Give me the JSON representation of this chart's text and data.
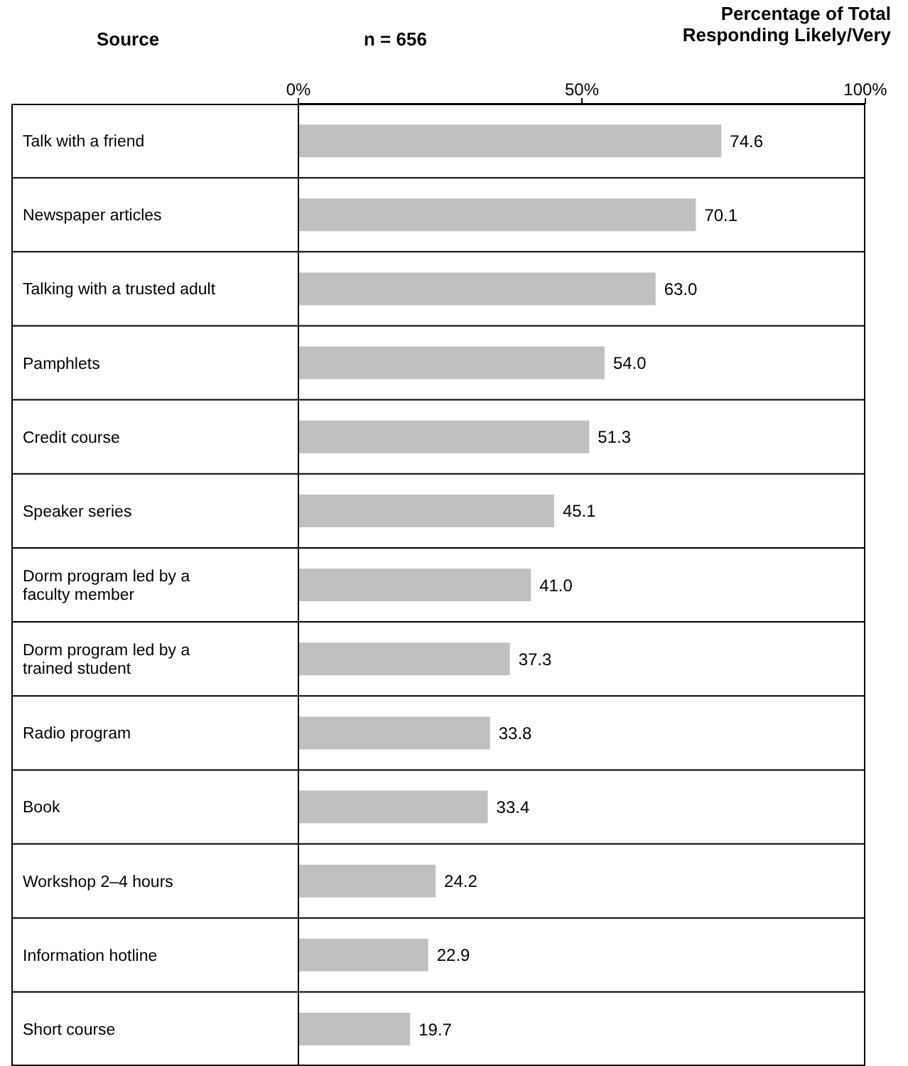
{
  "chart_data": {
    "type": "bar",
    "orientation": "horizontal",
    "ylabel": "Source",
    "xlabel": "Percentage of Total Responding Likely/Very",
    "annotations": [
      "n = 656"
    ],
    "categories": [
      "Talk with a friend",
      "Newspaper articles",
      "Talking with a trusted adult",
      "Pamphlets",
      "Credit course",
      "Speaker series",
      "Dorm program led by a faculty member",
      "Dorm program led by a trained student",
      "Radio program",
      "Book",
      "Workshop 2–4 hours",
      "Information hotline",
      "Short course"
    ],
    "values": [
      74.6,
      70.1,
      63.0,
      54.0,
      51.3,
      45.1,
      41.0,
      37.3,
      33.8,
      33.4,
      24.2,
      22.9,
      19.7
    ],
    "value_labels": [
      "74.6",
      "70.1",
      "63.0",
      "54.0",
      "51.3",
      "45.1",
      "41.0",
      "37.3",
      "33.8",
      "33.4",
      "24.2",
      "22.9",
      "19.7"
    ],
    "color": "#c0c0c0",
    "xlim": [
      0,
      100
    ],
    "xticks": [
      {
        "value": 0,
        "label": "0%"
      },
      {
        "value": 50,
        "label": "50%"
      },
      {
        "value": 100,
        "label": "100%"
      }
    ],
    "grid": false,
    "legend": false
  }
}
